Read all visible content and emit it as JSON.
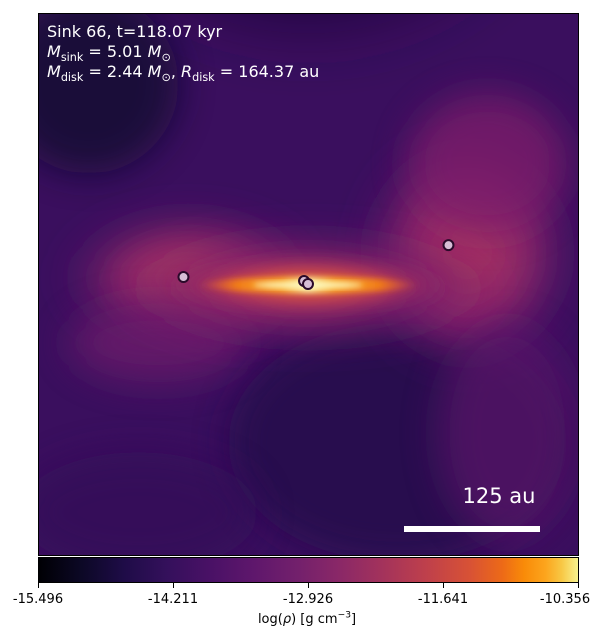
{
  "annotation": {
    "sink_label": "Sink 66, t=118.07 kyr",
    "m_sink_symbol": "M",
    "m_sink_sub": "sink",
    "m_sink_value": "= 5.01",
    "m_sink_unit": "M",
    "m_sink_unit_sub": "⊙",
    "m_disk_symbol": "M",
    "m_disk_sub": "disk",
    "m_disk_value": "= 2.44",
    "m_disk_unit": "M",
    "m_disk_unit_sub": "⊙",
    "r_disk_symbol": "R",
    "r_disk_sub": "disk",
    "r_disk_value": "= 164.37 au"
  },
  "scale_bar": {
    "label": "125 au"
  },
  "colorbar": {
    "label_prefix": "log(",
    "label_rho": "ρ",
    "label_mid": ") [g cm",
    "label_exp": "−3",
    "label_suffix": "]",
    "ticks": [
      "-15.496",
      "-14.211",
      "-12.926",
      "-11.641",
      "-10.356"
    ],
    "colormap": "inferno"
  },
  "sinks": [
    {
      "name": "sink-left"
    },
    {
      "name": "sink-center-a"
    },
    {
      "name": "sink-center-b"
    },
    {
      "name": "sink-right"
    }
  ]
}
